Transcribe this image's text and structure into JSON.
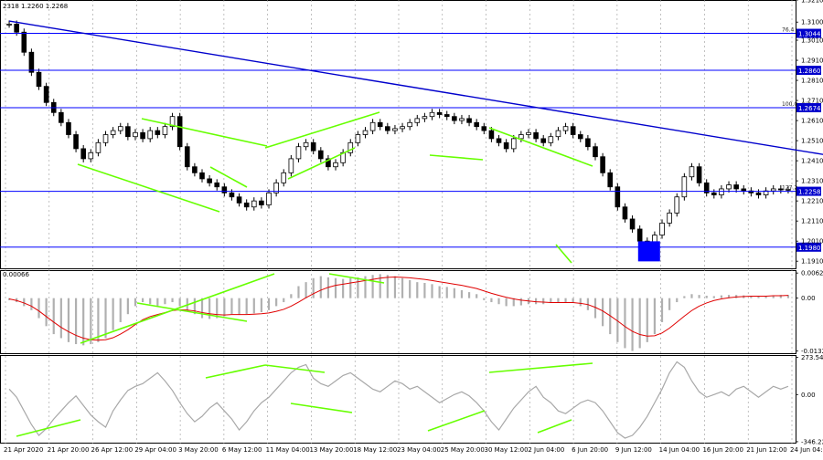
{
  "header": {
    "ohlc_text": "2318 1.2260 1.2268"
  },
  "macd_header": "0.00066",
  "chart_data": [
    {
      "type": "candlestick",
      "title": "",
      "ylim": [
        1.187,
        1.321
      ],
      "price_ticks": [
        "1.3210",
        "1.3100",
        "1.3010",
        "1.2910",
        "1.2810",
        "1.2710",
        "1.2610",
        "1.2510",
        "1.2410",
        "1.2310",
        "1.2210",
        "1.2110",
        "1.2010",
        "1.1910"
      ],
      "levels": [
        {
          "value": 1.3044,
          "label": "1.3044",
          "fib": "76.4"
        },
        {
          "value": 1.286,
          "label": "1.2860",
          "fib": ""
        },
        {
          "value": 1.2674,
          "label": "1.2674",
          "fib": "100.0"
        },
        {
          "value": 1.2258,
          "label": "1.2258",
          "fib": "127.2"
        },
        {
          "value": 1.198,
          "label": "1.1980",
          "fib": ""
        }
      ],
      "trendline": {
        "from": 1.3105,
        "to": 1.244
      },
      "close_series": [
        1.309,
        1.305,
        1.295,
        1.285,
        1.278,
        1.27,
        1.265,
        1.26,
        1.254,
        1.247,
        1.242,
        1.245,
        1.25,
        1.254,
        1.256,
        1.258,
        1.253,
        1.255,
        1.252,
        1.256,
        1.254,
        1.258,
        1.263,
        1.248,
        1.238,
        1.235,
        1.232,
        1.23,
        1.228,
        1.225,
        1.223,
        1.22,
        1.218,
        1.221,
        1.219,
        1.225,
        1.23,
        1.235,
        1.242,
        1.248,
        1.25,
        1.246,
        1.242,
        1.238,
        1.24,
        1.245,
        1.25,
        1.254,
        1.256,
        1.26,
        1.258,
        1.256,
        1.257,
        1.258,
        1.26,
        1.262,
        1.263,
        1.265,
        1.264,
        1.263,
        1.261,
        1.262,
        1.26,
        1.258,
        1.256,
        1.252,
        1.25,
        1.247,
        1.252,
        1.254,
        1.255,
        1.252,
        1.25,
        1.253,
        1.256,
        1.258,
        1.254,
        1.252,
        1.248,
        1.243,
        1.235,
        1.228,
        1.218,
        1.212,
        1.207,
        1.201,
        1.199,
        1.204,
        1.21,
        1.215,
        1.223,
        1.233,
        1.238,
        1.23,
        1.225,
        1.224,
        1.227,
        1.229,
        1.227,
        1.226,
        1.225,
        1.224,
        1.226,
        1.227,
        1.2265,
        1.2268
      ],
      "box_label": "",
      "x_labels": [
        "21 Apr 2020",
        "21 Apr 20:00",
        "26 Apr 12:00",
        "29 Apr 04:00",
        "3 May 20:00",
        "6 May 12:00",
        "11 May 04:00",
        "13 May 20:00",
        "18 May 12:00",
        "23 May 04:00",
        "25 May 20:00",
        "30 May 12:00",
        "2 Jun 04:00",
        "6 Jun 20:00",
        "9 Jun 12:00",
        "14 Jun 04:00",
        "16 Jun 20:00",
        "21 Jun 12:00",
        "24 Jun 04:00"
      ]
    },
    {
      "type": "histogram",
      "name": "MACD",
      "ticks": [
        "0.00628",
        "0.00",
        "-0.01323"
      ],
      "ylim": [
        -0.014,
        0.007
      ],
      "values": [
        -0.0005,
        -0.001,
        -0.002,
        -0.003,
        -0.005,
        -0.007,
        -0.009,
        -0.01,
        -0.011,
        -0.0115,
        -0.0118,
        -0.0115,
        -0.011,
        -0.01,
        -0.008,
        -0.006,
        -0.004,
        -0.002,
        -0.001,
        -0.0015,
        -0.002,
        -0.0015,
        -0.001,
        -0.002,
        -0.003,
        -0.004,
        -0.005,
        -0.0052,
        -0.005,
        -0.0045,
        -0.004,
        -0.0042,
        -0.004,
        -0.0038,
        -0.0035,
        -0.003,
        -0.002,
        -0.001,
        0.001,
        0.003,
        0.004,
        0.005,
        0.0055,
        0.0052,
        0.005,
        0.0048,
        0.005,
        0.0052,
        0.0055,
        0.0058,
        0.006,
        0.0058,
        0.0055,
        0.005,
        0.0045,
        0.004,
        0.0038,
        0.0035,
        0.003,
        0.0028,
        0.0025,
        0.002,
        0.0015,
        0.001,
        -0.0005,
        -0.001,
        -0.0015,
        -0.002,
        -0.002,
        -0.0018,
        -0.0015,
        -0.0015,
        -0.0015,
        -0.0012,
        -0.001,
        -0.001,
        -0.0012,
        -0.002,
        -0.003,
        -0.005,
        -0.007,
        -0.009,
        -0.011,
        -0.0125,
        -0.0132,
        -0.0125,
        -0.011,
        -0.009,
        -0.006,
        -0.003,
        -0.001,
        0.0005,
        0.001,
        0.0008,
        0.0006,
        0.0005,
        0.0007,
        0.0008,
        0.0008,
        0.0007,
        0.0006,
        0.0005,
        0.0006,
        0.0007,
        0.0008,
        0.0008
      ],
      "signal": [
        -0.0002,
        -0.0006,
        -0.0012,
        -0.002,
        -0.0032,
        -0.0046,
        -0.006,
        -0.0073,
        -0.0084,
        -0.0093,
        -0.01,
        -0.0104,
        -0.0105,
        -0.0104,
        -0.0099,
        -0.009,
        -0.0079,
        -0.0066,
        -0.0054,
        -0.0046,
        -0.0041,
        -0.0036,
        -0.0031,
        -0.0029,
        -0.003,
        -0.0032,
        -0.0036,
        -0.0039,
        -0.0041,
        -0.0042,
        -0.0041,
        -0.0041,
        -0.0041,
        -0.004,
        -0.0039,
        -0.0037,
        -0.0033,
        -0.0028,
        -0.002,
        -0.001,
        0.0001,
        0.0011,
        0.002,
        0.0027,
        0.0032,
        0.0035,
        0.0038,
        0.0041,
        0.0044,
        0.0047,
        0.005,
        0.0052,
        0.0053,
        0.0052,
        0.0051,
        0.0049,
        0.0047,
        0.0044,
        0.0041,
        0.0038,
        0.0035,
        0.0032,
        0.0028,
        0.0024,
        0.0018,
        0.0012,
        0.0007,
        0.0002,
        -0.0002,
        -0.0005,
        -0.0007,
        -0.0009,
        -0.001,
        -0.0011,
        -0.0011,
        -0.0011,
        -0.0011,
        -0.0013,
        -0.0016,
        -0.0023,
        -0.0032,
        -0.0044,
        -0.0057,
        -0.0071,
        -0.0083,
        -0.0091,
        -0.0095,
        -0.0094,
        -0.0087,
        -0.0075,
        -0.006,
        -0.0045,
        -0.0031,
        -0.002,
        -0.0012,
        -0.0006,
        -0.0002,
        0.0001,
        0.0003,
        0.0004,
        0.0005,
        0.0005,
        0.0005,
        0.0006,
        0.0006,
        0.0007
      ]
    },
    {
      "type": "line",
      "name": "CCI",
      "ticks": [
        "273.549",
        "0.00",
        "-346.223"
      ],
      "ylim": [
        -360,
        290
      ],
      "values": [
        40,
        -20,
        -120,
        -220,
        -300,
        -250,
        -180,
        -120,
        -60,
        -10,
        -80,
        -150,
        -200,
        -240,
        -120,
        -40,
        30,
        60,
        80,
        120,
        160,
        100,
        30,
        -60,
        -140,
        -200,
        -160,
        -100,
        -60,
        -120,
        -180,
        -260,
        -200,
        -120,
        -60,
        -20,
        40,
        100,
        160,
        200,
        220,
        120,
        80,
        60,
        100,
        140,
        160,
        120,
        80,
        40,
        20,
        60,
        100,
        80,
        40,
        60,
        20,
        -20,
        -60,
        -30,
        0,
        20,
        -10,
        -60,
        -120,
        -200,
        -260,
        -180,
        -100,
        -40,
        20,
        60,
        -20,
        -60,
        -120,
        -140,
        -100,
        -60,
        -40,
        -60,
        -120,
        -200,
        -280,
        -320,
        -300,
        -240,
        -160,
        -60,
        40,
        160,
        240,
        200,
        100,
        20,
        -20,
        0,
        20,
        -10,
        40,
        60,
        20,
        -20,
        20,
        60,
        40,
        60
      ],
      "legend_title": ""
    }
  ]
}
